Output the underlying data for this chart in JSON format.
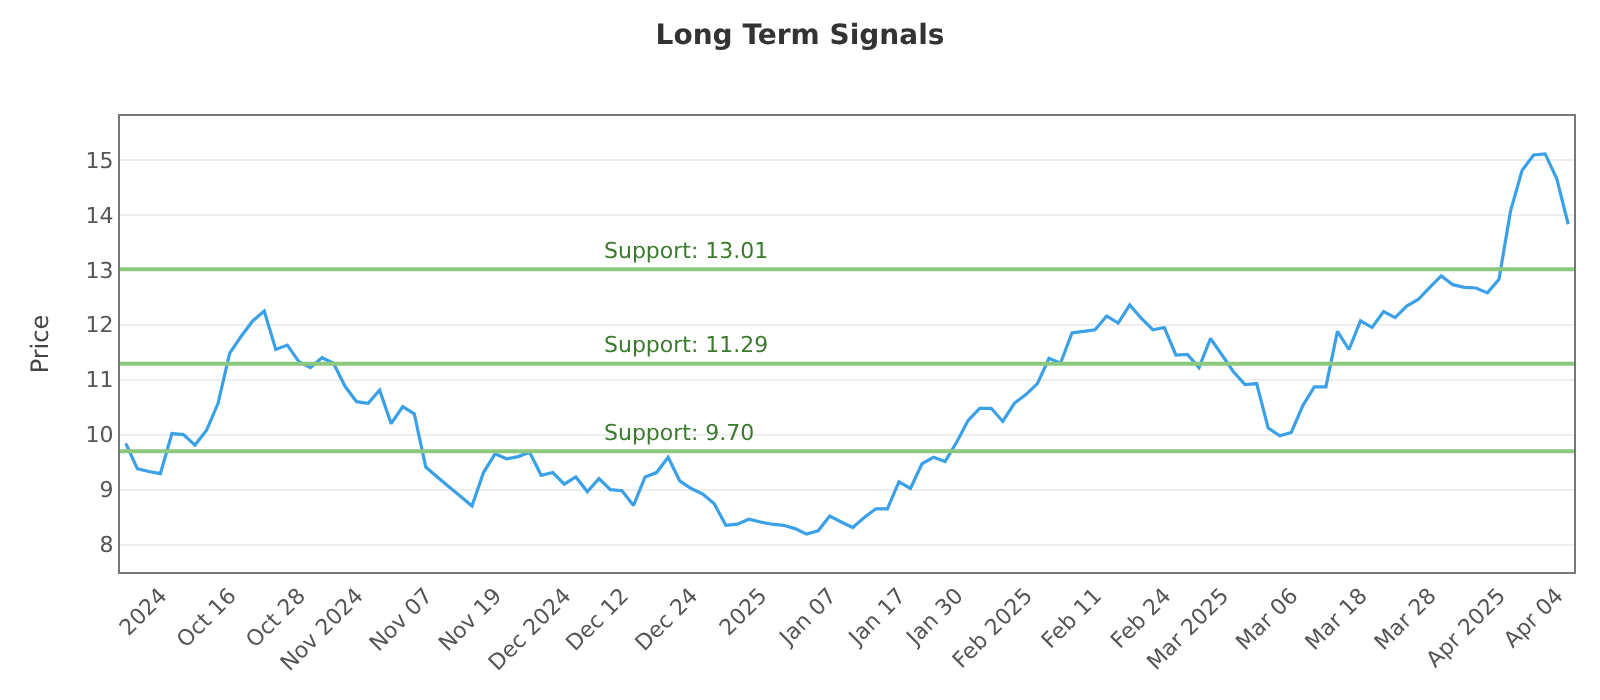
{
  "chart_data": {
    "type": "line",
    "title": "Long Term Signals",
    "ylabel": "Price",
    "categories": [
      null,
      null,
      null,
      "2024",
      null,
      null,
      null,
      null,
      null,
      "Oct 16",
      null,
      null,
      null,
      null,
      null,
      "Oct 28",
      null,
      null,
      null,
      null,
      "Nov 2024",
      null,
      null,
      null,
      null,
      null,
      "Nov 07",
      null,
      null,
      null,
      null,
      null,
      "Nov 19",
      null,
      null,
      null,
      null,
      null,
      "Dec 2024",
      null,
      null,
      null,
      null,
      "Dec 12",
      null,
      null,
      null,
      null,
      null,
      "Dec 24",
      null,
      null,
      null,
      null,
      null,
      "2025",
      null,
      null,
      null,
      null,
      null,
      "Jan 07",
      null,
      null,
      null,
      null,
      null,
      "Jan 17",
      null,
      null,
      null,
      null,
      "Jan 30",
      null,
      null,
      null,
      null,
      null,
      "Feb 2025",
      null,
      null,
      null,
      null,
      null,
      "Feb 11",
      null,
      null,
      null,
      null,
      null,
      "Feb 24",
      null,
      null,
      null,
      null,
      "Mar 2025",
      null,
      null,
      null,
      null,
      null,
      "Mar 06",
      null,
      null,
      null,
      null,
      null,
      "Mar 18",
      null,
      null,
      null,
      null,
      null,
      "Mar 28",
      null,
      null,
      null,
      null,
      null,
      "Apr 2025",
      null,
      null,
      null,
      null,
      "Apr 04",
      null
    ],
    "series": [
      {
        "color": "#3aa0e8",
        "values": [
          9.84,
          9.38,
          9.33,
          9.29,
          10.02,
          10.0,
          9.81,
          10.08,
          10.57,
          11.48,
          11.79,
          12.07,
          12.25,
          11.55,
          11.63,
          11.33,
          11.22,
          11.4,
          11.3,
          10.88,
          10.6,
          10.57,
          10.81,
          10.2,
          10.51,
          10.38,
          9.41,
          9.23,
          9.05,
          8.88,
          8.7,
          9.31,
          9.65,
          9.56,
          9.6,
          9.68,
          9.26,
          9.31,
          9.1,
          9.23,
          8.96,
          9.2,
          9.0,
          8.98,
          8.71,
          9.23,
          9.31,
          9.59,
          9.16,
          9.02,
          8.92,
          8.74,
          8.35,
          8.37,
          8.46,
          8.41,
          8.37,
          8.35,
          8.29,
          8.19,
          8.25,
          8.52,
          8.41,
          8.31,
          8.49,
          8.65,
          8.65,
          9.14,
          9.02,
          9.47,
          9.59,
          9.51,
          9.86,
          10.26,
          10.48,
          10.48,
          10.24,
          10.57,
          10.73,
          10.93,
          11.39,
          11.3,
          11.85,
          11.88,
          11.91,
          12.16,
          12.03,
          12.36,
          12.12,
          11.91,
          11.95,
          11.45,
          11.46,
          11.22,
          11.75,
          11.45,
          11.14,
          10.91,
          10.93,
          10.12,
          9.98,
          10.04,
          10.53,
          10.87,
          10.87,
          11.88,
          11.55,
          12.07,
          11.95,
          12.24,
          12.13,
          12.34,
          12.46,
          12.68,
          12.89,
          12.73,
          12.68,
          12.67,
          12.58,
          12.83,
          14.07,
          14.81,
          15.09,
          15.11,
          14.66,
          13.83
        ]
      }
    ],
    "ylim": [
      7.5,
      15.8
    ],
    "yticks": [
      8,
      9,
      10,
      11,
      12,
      13,
      14,
      15
    ],
    "ref_lines": [
      {
        "axis": "y",
        "value": 13.01,
        "label": "Support: 13.01",
        "color": "#8cc97e"
      },
      {
        "axis": "y",
        "value": 11.29,
        "label": "Support: 11.29",
        "color": "#8cc97e"
      },
      {
        "axis": "y",
        "value": 9.7,
        "label": "Support: 9.70",
        "color": "#8cc97e"
      }
    ],
    "grid": "y",
    "marker": "none",
    "line_style": "solid"
  }
}
